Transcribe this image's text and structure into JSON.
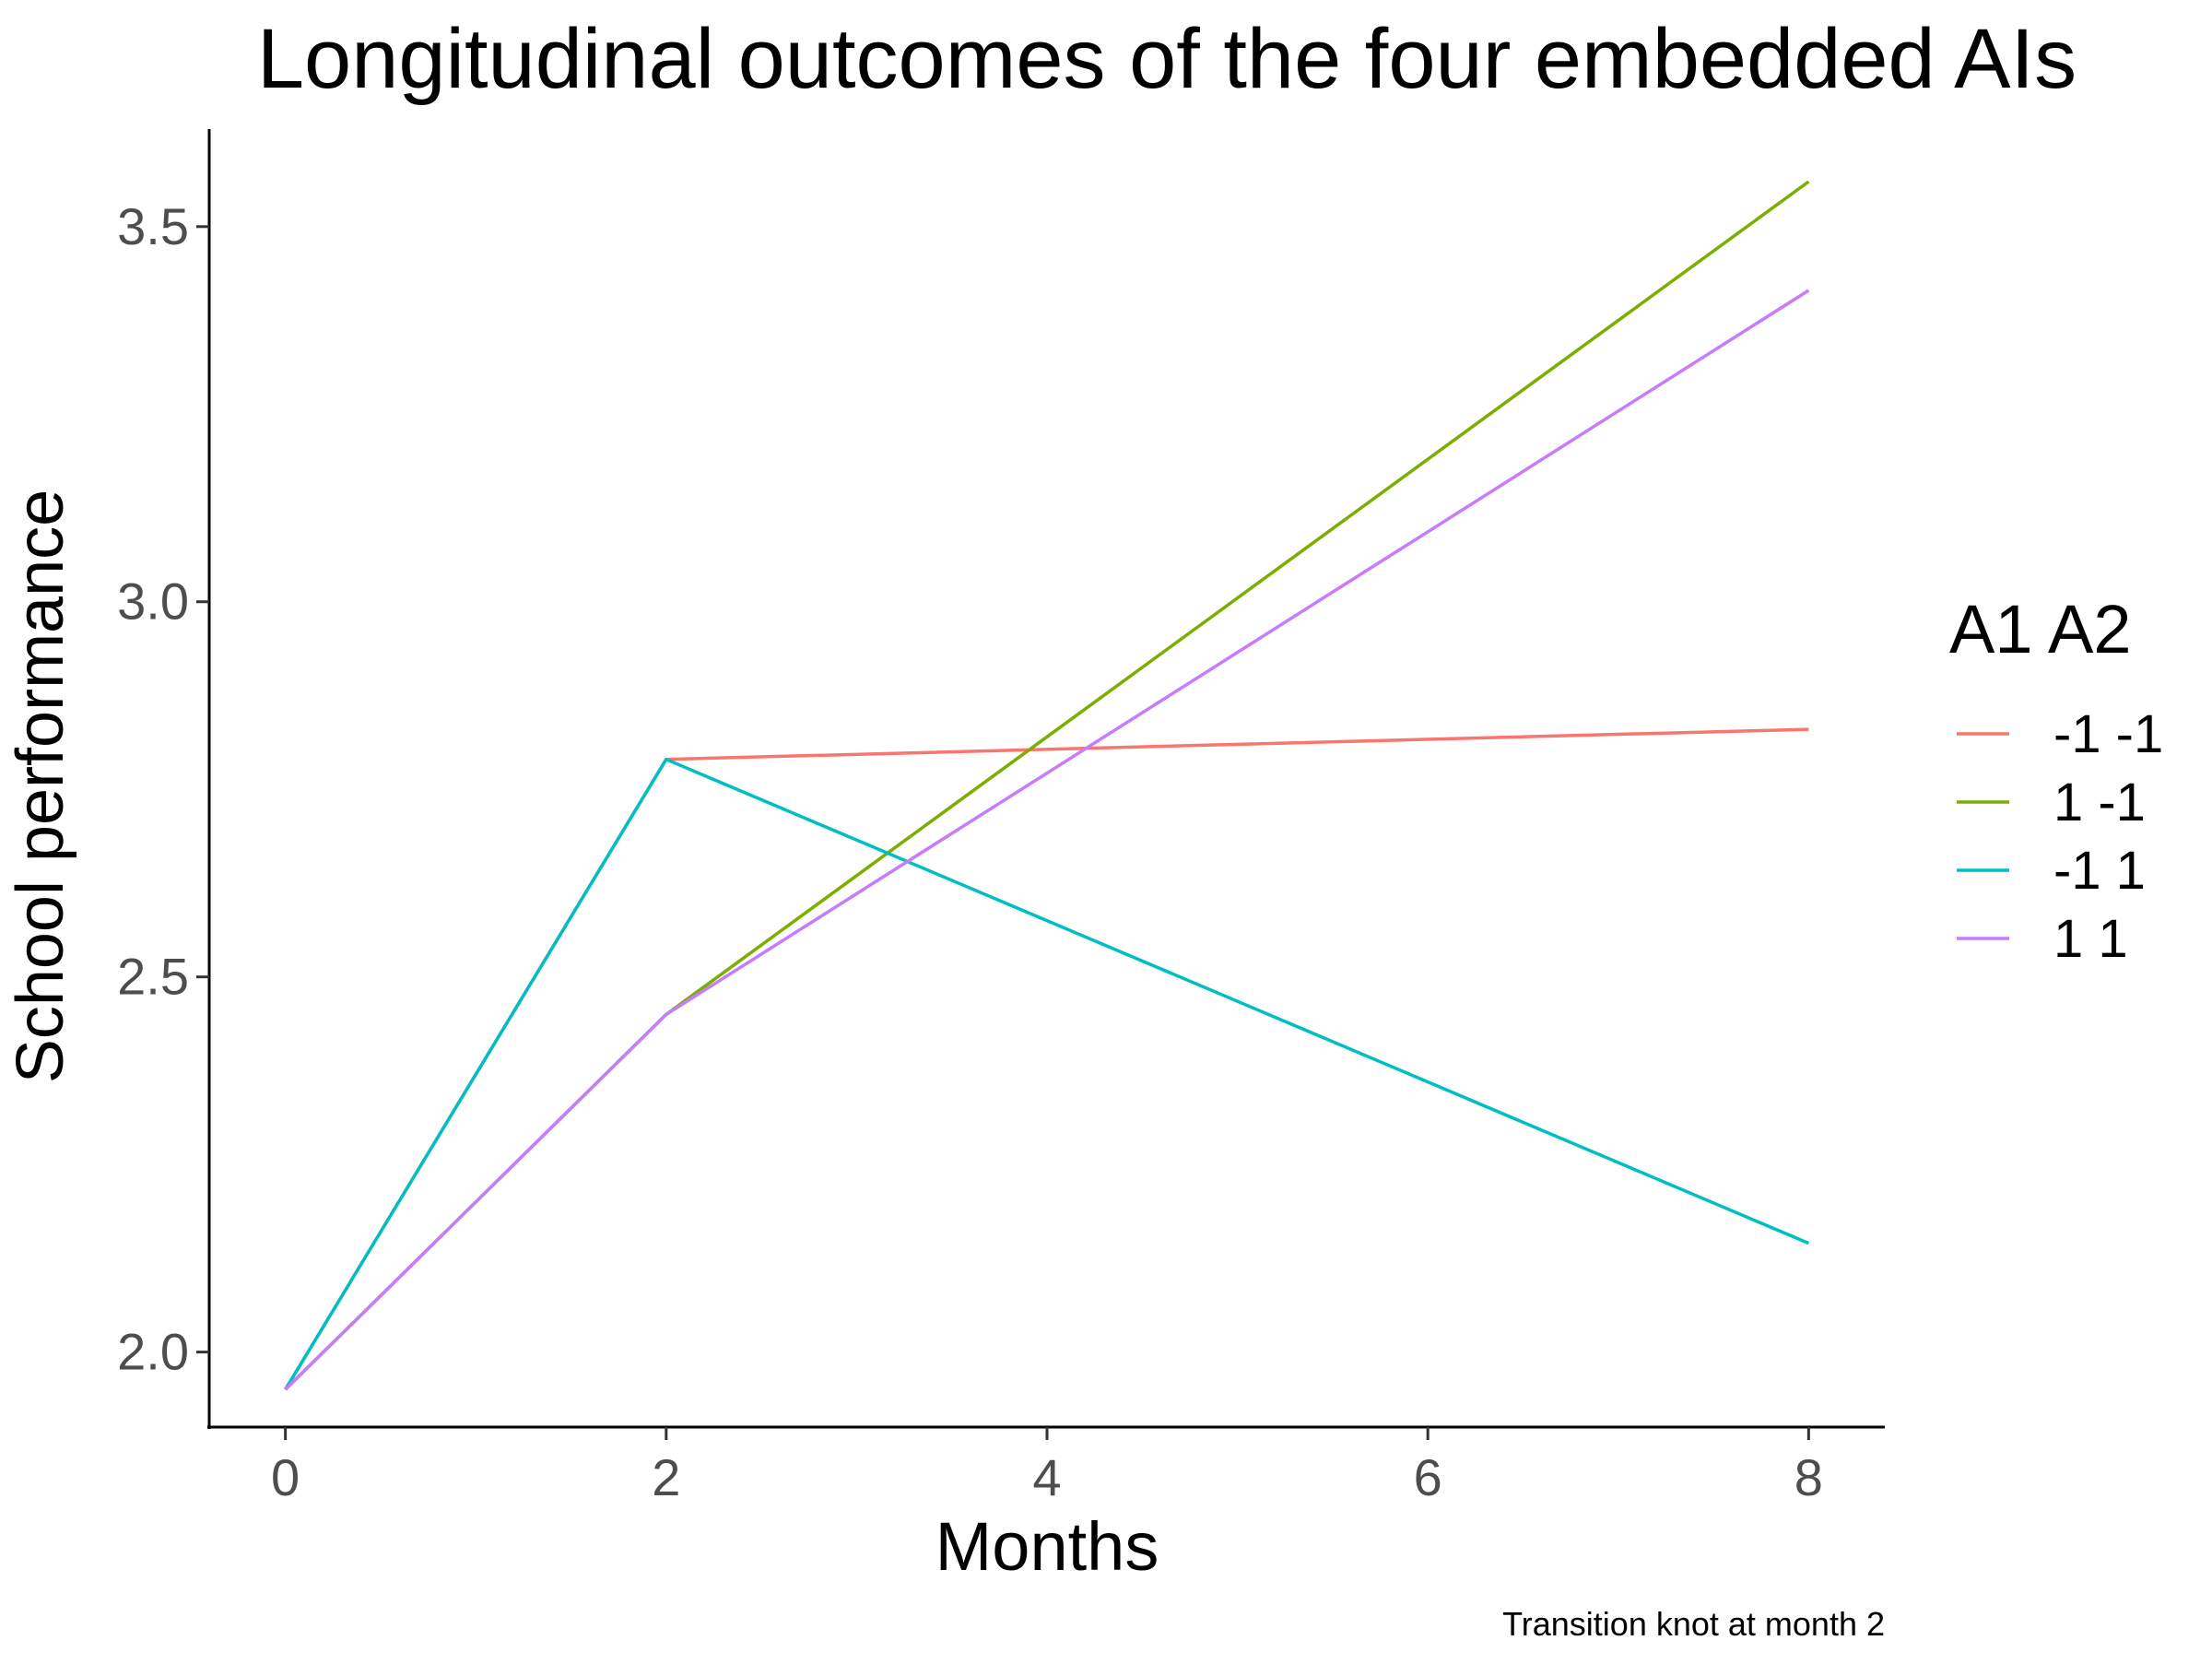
{
  "chart_data": {
    "type": "line",
    "title": "Longitudinal outcomes of the four embedded AIs",
    "xlabel": "Months",
    "ylabel": "School performance",
    "caption": "Transition knot at month 2",
    "x": [
      0,
      2,
      8
    ],
    "xlim": [
      -0.4,
      8.4
    ],
    "ylim": [
      1.9,
      3.63
    ],
    "xticks": [
      0,
      2,
      4,
      6,
      8
    ],
    "xtick_labels": [
      "0",
      "2",
      "4",
      "6",
      "8"
    ],
    "yticks": [
      2.0,
      2.5,
      3.0,
      3.5
    ],
    "ytick_labels": [
      "2.0",
      "2.5",
      "3.0",
      "3.5"
    ],
    "grid": false,
    "legend": {
      "title": "A1 A2",
      "position": "right"
    },
    "series": [
      {
        "name": "-1 -1",
        "color": "#F8766D",
        "values": [
          1.95,
          2.79,
          2.83
        ]
      },
      {
        "name": "1 -1",
        "color": "#7CAE00",
        "values": [
          1.95,
          2.45,
          3.56
        ]
      },
      {
        "name": "-1 1",
        "color": "#00BFC4",
        "values": [
          1.95,
          2.79,
          2.145
        ]
      },
      {
        "name": "1 1",
        "color": "#C77CFF",
        "values": [
          1.95,
          2.45,
          3.415
        ]
      }
    ]
  }
}
